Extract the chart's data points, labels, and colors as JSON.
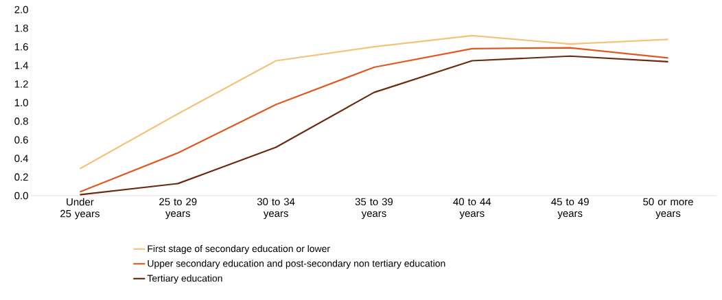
{
  "chart_data": {
    "type": "line",
    "categories": [
      "Under 25 years",
      "25 to 29 years",
      "30 to 34 years",
      "35 to 39 years",
      "40 to 44 years",
      "45 to 49 years",
      "50 or more years"
    ],
    "series": [
      {
        "name": "First stage of secondary education or lower",
        "color": "#f5c27a",
        "values": [
          0.29,
          0.88,
          1.45,
          1.6,
          1.72,
          1.63,
          1.68
        ]
      },
      {
        "name": "Upper secondary education and post-secondary non tertiary education",
        "color": "#e0581f",
        "values": [
          0.04,
          0.46,
          0.98,
          1.38,
          1.58,
          1.59,
          1.48
        ]
      },
      {
        "name": "Tertiary education",
        "color": "#6b2a10",
        "values": [
          0.01,
          0.13,
          0.52,
          1.11,
          1.45,
          1.5,
          1.44
        ]
      }
    ],
    "ylim": [
      0,
      2
    ],
    "yticks": [
      {
        "value": 0,
        "label": "0.0"
      },
      0.2,
      0.4,
      0.6,
      0.8,
      {
        "value": 1,
        "label": "1.0"
      },
      1.2,
      1.4,
      1.6,
      1.8,
      {
        "value": 2,
        "label": "2.0"
      }
    ],
    "legend": "bottom"
  }
}
